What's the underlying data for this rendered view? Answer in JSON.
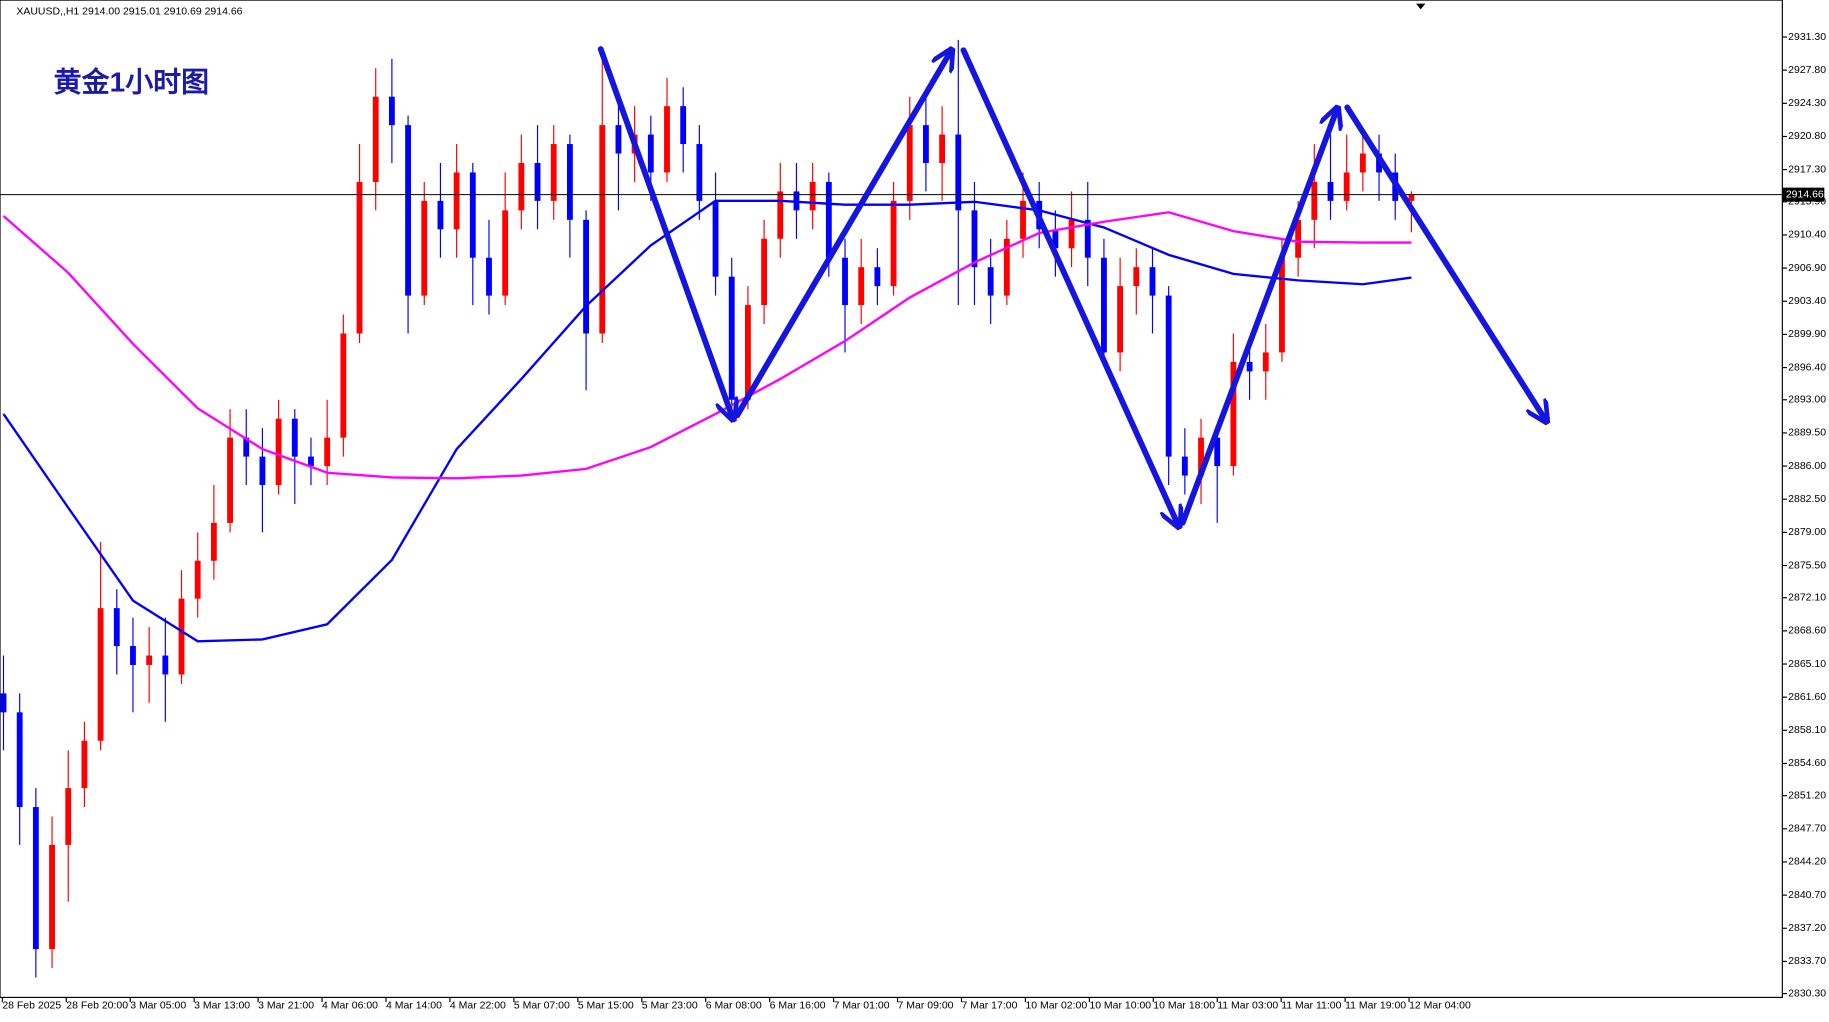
{
  "chart_data": {
    "type": "candlestick",
    "title": "黄金1小时图",
    "header": "XAUUSD,,H1  2914.00 2915.01 2910.69 2914.66",
    "up_color": "#ff0000",
    "down_color": "#0000ff",
    "open": [
      2862,
      2860,
      2850,
      2835,
      2846,
      2852,
      2857,
      2871,
      2867,
      2865,
      2866,
      2864,
      2872,
      2876,
      2880,
      2889,
      2887,
      2884,
      2891,
      2887,
      2886,
      2889,
      2900,
      2916,
      2925,
      2922,
      2904,
      2914,
      2911,
      2917,
      2908,
      2904,
      2913,
      2918,
      2914,
      2920,
      2912,
      2900,
      2922,
      2919,
      2921,
      2917,
      2924,
      2920,
      2914,
      2906,
      2893,
      2903,
      2910,
      2915,
      2913,
      2916,
      2908,
      2903,
      2907,
      2905,
      2914,
      2922,
      2918,
      2921,
      2913,
      2907,
      2904,
      2910,
      2914,
      2911,
      2909,
      2912,
      2908,
      2898,
      2905,
      2907,
      2904,
      2887,
      2885,
      2889,
      2886,
      2897,
      2896,
      2898,
      2908,
      2912,
      2916,
      2914,
      2917,
      2919,
      2917,
      2914.0
    ],
    "high": [
      2866,
      2862,
      2852,
      2849,
      2856,
      2859,
      2878,
      2873,
      2870,
      2869,
      2870,
      2875,
      2879,
      2884,
      2892,
      2892,
      2890,
      2893,
      2892,
      2889,
      2893,
      2902,
      2920,
      2928,
      2929,
      2923,
      2916,
      2918,
      2920,
      2918,
      2912,
      2917,
      2921,
      2922,
      2922,
      2921,
      2913,
      2930,
      2925,
      2924,
      2923,
      2927,
      2926,
      2922,
      2917,
      2908,
      2905,
      2912,
      2918,
      2918,
      2918,
      2917,
      2910,
      2910,
      2909,
      2916,
      2925,
      2925,
      2924,
      2931,
      2916,
      2910,
      2912,
      2917,
      2916,
      2913,
      2915,
      2916,
      2910,
      2908,
      2909,
      2909,
      2905,
      2890,
      2891,
      2890,
      2900,
      2899,
      2901,
      2910,
      2914,
      2920,
      2921,
      2921,
      2921,
      2921,
      2919,
      2915.01
    ],
    "low": [
      2856,
      2846,
      2832,
      2833,
      2840,
      2850,
      2856,
      2864,
      2860,
      2861,
      2859,
      2863,
      2870,
      2874,
      2879,
      2884,
      2879,
      2883,
      2882,
      2884,
      2884,
      2887,
      2899,
      2913,
      2918,
      2900,
      2903,
      2908,
      2908,
      2903,
      2902,
      2903,
      2911,
      2911,
      2912,
      2908,
      2894,
      2899,
      2913,
      2916,
      2914,
      2916,
      2917,
      2912,
      2904,
      2891,
      2892,
      2901,
      2908,
      2910,
      2911,
      2906,
      2898,
      2901,
      2903,
      2904,
      2912,
      2915,
      2914,
      2903,
      2903,
      2901,
      2903,
      2908,
      2909,
      2906,
      2907,
      2905,
      2897,
      2896,
      2902,
      2900,
      2884,
      2883,
      2882,
      2880,
      2885,
      2893,
      2893,
      2897,
      2906,
      2909,
      2912,
      2913,
      2915,
      2914,
      2912,
      2910.69
    ],
    "close": [
      2860,
      2850,
      2835,
      2846,
      2852,
      2857,
      2871,
      2867,
      2865,
      2866,
      2864,
      2872,
      2876,
      2880,
      2889,
      2887,
      2884,
      2891,
      2887,
      2886,
      2889,
      2900,
      2916,
      2925,
      2922,
      2904,
      2914,
      2911,
      2917,
      2908,
      2904,
      2913,
      2918,
      2914,
      2920,
      2912,
      2900,
      2922,
      2919,
      2921,
      2917,
      2924,
      2920,
      2914,
      2906,
      2893,
      2903,
      2910,
      2915,
      2913,
      2916,
      2908,
      2903,
      2907,
      2905,
      2914,
      2922,
      2918,
      2921,
      2913,
      2907,
      2904,
      2910,
      2914,
      2911,
      2909,
      2912,
      2908,
      2898,
      2905,
      2907,
      2904,
      2887,
      2885,
      2889,
      2886,
      2897,
      2896,
      2898,
      2908,
      2912,
      2916,
      2914,
      2917,
      2919,
      2917,
      2914,
      2914.66
    ],
    "ma_lines": [
      {
        "color": "#0000ff",
        "x": [
          0,
          4,
          8,
          12,
          16,
          20,
          24,
          28,
          32,
          36,
          40,
          44,
          48,
          52,
          56,
          60,
          64,
          68,
          72,
          76,
          80,
          84,
          87
        ],
        "values": [
          2891.5,
          2881.6,
          2871.8,
          2867.5,
          2867.7,
          2869.3,
          2876.1,
          2887.8,
          2895.2,
          2902.9,
          2909.3,
          2914.0,
          2914.0,
          2913.6,
          2913.6,
          2913.9,
          2913.0,
          2911.2,
          2908.3,
          2906.3,
          2905.6,
          2905.2,
          2905.9
        ]
      },
      {
        "color": "#ff00ff",
        "x": [
          0,
          4,
          8,
          12,
          16,
          20,
          24,
          28,
          32,
          36,
          40,
          44,
          48,
          52,
          56,
          60,
          64,
          68,
          72,
          76,
          80,
          84,
          87
        ],
        "values": [
          2912.4,
          2906.4,
          2898.9,
          2892.1,
          2887.8,
          2885.3,
          2884.8,
          2884.7,
          2885.0,
          2885.7,
          2888.0,
          2891.5,
          2895.2,
          2899.2,
          2903.8,
          2907.5,
          2910.6,
          2911.8,
          2912.8,
          2910.8,
          2909.7,
          2909.6,
          2909.6
        ]
      }
    ],
    "last_price": 2914.66,
    "x_labels": [
      "28 Feb 2025",
      "28 Feb 20:00",
      "3 Mar 05:00",
      "3 Mar 13:00",
      "3 Mar 21:00",
      "4 Mar 06:00",
      "4 Mar 14:00",
      "4 Mar 22:00",
      "5 Mar 07:00",
      "5 Mar 15:00",
      "5 Mar 23:00",
      "6 Mar 08:00",
      "6 Mar 16:00",
      "7 Mar 01:00",
      "7 Mar 09:00",
      "7 Mar 17:00",
      "10 Mar 02:00",
      "10 Mar 10:00",
      "10 Mar 18:00",
      "11 Mar 03:00",
      "11 Mar 11:00",
      "11 Mar 19:00",
      "12 Mar 04:00"
    ],
    "ylim": [
      2829.9,
      2935.2
    ],
    "yticks": [
      {
        "value": 2931.3,
        "label": "2931.30"
      },
      {
        "value": 2927.8,
        "label": "2927.80"
      },
      {
        "value": 2924.3,
        "label": "2924.30"
      },
      {
        "value": 2920.8,
        "label": "2920.80"
      },
      {
        "value": 2917.3,
        "label": "2917.30"
      },
      {
        "value": 2913.9,
        "label": "2913.90"
      },
      {
        "value": 2910.4,
        "label": "2910.40"
      },
      {
        "value": 2906.9,
        "label": "2906.90"
      },
      {
        "value": 2903.4,
        "label": "2903.40"
      },
      {
        "value": 2899.9,
        "label": "2899.90"
      },
      {
        "value": 2896.4,
        "label": "2896.40"
      },
      {
        "value": 2893.0,
        "label": "2893.00"
      },
      {
        "value": 2889.5,
        "label": "2889.50"
      },
      {
        "value": 2886.0,
        "label": "2886.00"
      },
      {
        "value": 2882.5,
        "label": "2882.50"
      },
      {
        "value": 2879.0,
        "label": "2879.00"
      },
      {
        "value": 2875.5,
        "label": "2875.50"
      },
      {
        "value": 2872.1,
        "label": "2872.10"
      },
      {
        "value": 2868.6,
        "label": "2868.60"
      },
      {
        "value": 2865.1,
        "label": "2865.10"
      },
      {
        "value": 2861.6,
        "label": "2861.60"
      },
      {
        "value": 2858.1,
        "label": "2858.10"
      },
      {
        "value": 2854.6,
        "label": "2854.60"
      },
      {
        "value": 2851.2,
        "label": "2851.20"
      },
      {
        "value": 2847.7,
        "label": "2847.70"
      },
      {
        "value": 2844.2,
        "label": "2844.20"
      },
      {
        "value": 2840.7,
        "label": "2840.70"
      },
      {
        "value": 2837.2,
        "label": "2837.20"
      },
      {
        "value": 2833.7,
        "label": "2833.70"
      },
      {
        "value": 2830.3,
        "label": "2830.30"
      }
    ]
  }
}
